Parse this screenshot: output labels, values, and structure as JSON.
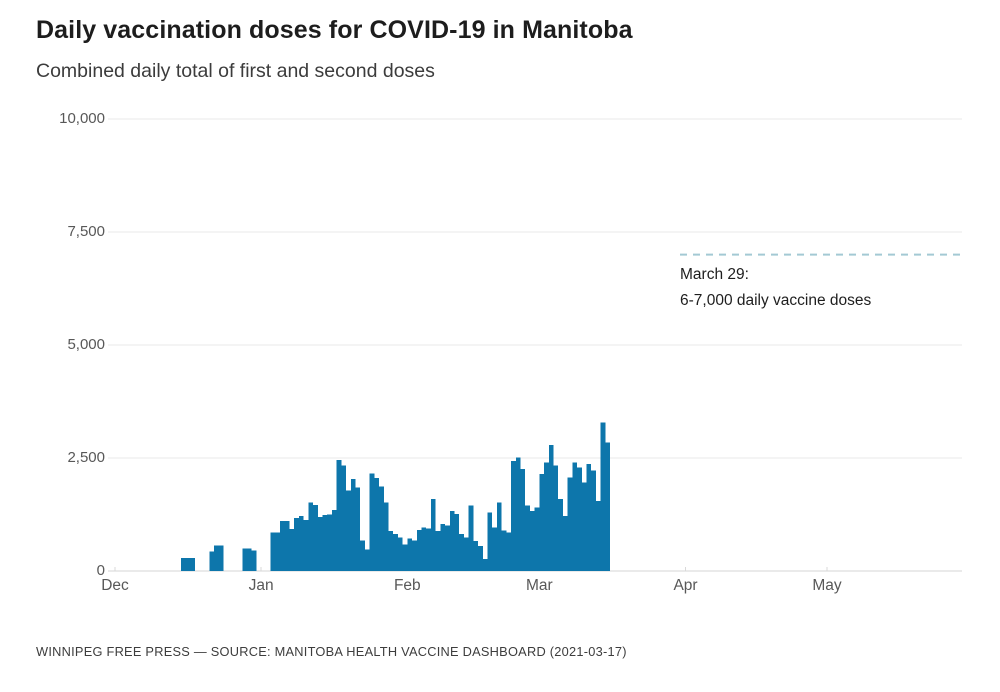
{
  "page": {
    "title": "Daily vaccination doses for COVID-19 in Manitoba",
    "subtitle": "Combined daily total of first and second doses",
    "footer": "WINNIPEG FREE PRESS — SOURCE: MANITOBA HEALTH VACCINE DASHBOARD (2021-03-17)"
  },
  "annotation": {
    "line1": "March 29:",
    "line2": "6-7,000 daily vaccine doses"
  },
  "colors": {
    "bar": "#0d76ab",
    "grid": "#e9e9e9",
    "axis": "#d4d4d4",
    "month_tick": "#d9d9d9",
    "dash_line": "#a3c9d4",
    "text_dark": "#1e1e1e",
    "tick_label": "#585858"
  },
  "chart_data": {
    "type": "bar",
    "title": "Daily vaccination doses for COVID-19 in Manitoba",
    "subtitle": "Combined daily total of first and second doses",
    "xlabel": "",
    "ylabel": "",
    "ylim": [
      0,
      10000
    ],
    "grid": true,
    "legend_position": "none",
    "yticks": [
      {
        "label": "0",
        "value": 0
      },
      {
        "label": "2,500",
        "value": 2500
      },
      {
        "label": "5,000",
        "value": 5000
      },
      {
        "label": "7,500",
        "value": 7500
      },
      {
        "label": "10,000",
        "value": 10000
      }
    ],
    "xticks": [
      {
        "label": "Dec",
        "month": "2020-12"
      },
      {
        "label": "Jan",
        "month": "2021-01"
      },
      {
        "label": "Feb",
        "month": "2021-02"
      },
      {
        "label": "Mar",
        "month": "2021-03"
      },
      {
        "label": "Apr",
        "month": "2021-04"
      },
      {
        "label": "May",
        "month": "2021-05"
      }
    ],
    "annotation_line": {
      "y": 7000,
      "label": [
        "March 29:",
        "6-7,000 daily vaccine doses"
      ]
    },
    "x": [
      "2020-12-15",
      "2020-12-16",
      "2020-12-17",
      "2020-12-18",
      "2020-12-19",
      "2020-12-20",
      "2020-12-21",
      "2020-12-22",
      "2020-12-23",
      "2020-12-24",
      "2020-12-25",
      "2020-12-26",
      "2020-12-27",
      "2020-12-28",
      "2020-12-29",
      "2020-12-30",
      "2020-12-31",
      "2021-01-01",
      "2021-01-02",
      "2021-01-03",
      "2021-01-04",
      "2021-01-05",
      "2021-01-06",
      "2021-01-07",
      "2021-01-08",
      "2021-01-09",
      "2021-01-10",
      "2021-01-11",
      "2021-01-12",
      "2021-01-13",
      "2021-01-14",
      "2021-01-15",
      "2021-01-16",
      "2021-01-17",
      "2021-01-18",
      "2021-01-19",
      "2021-01-20",
      "2021-01-21",
      "2021-01-22",
      "2021-01-23",
      "2021-01-24",
      "2021-01-25",
      "2021-01-26",
      "2021-01-27",
      "2021-01-28",
      "2021-01-29",
      "2021-01-30",
      "2021-01-31",
      "2021-02-01",
      "2021-02-02",
      "2021-02-03",
      "2021-02-04",
      "2021-02-05",
      "2021-02-06",
      "2021-02-07",
      "2021-02-08",
      "2021-02-09",
      "2021-02-10",
      "2021-02-11",
      "2021-02-12",
      "2021-02-13",
      "2021-02-14",
      "2021-02-15",
      "2021-02-16",
      "2021-02-17",
      "2021-02-18",
      "2021-02-19",
      "2021-02-20",
      "2021-02-21",
      "2021-02-22",
      "2021-02-23",
      "2021-02-24",
      "2021-02-25",
      "2021-02-26",
      "2021-02-27",
      "2021-02-28",
      "2021-03-01",
      "2021-03-02",
      "2021-03-03",
      "2021-03-04",
      "2021-03-05",
      "2021-03-06",
      "2021-03-07",
      "2021-03-08",
      "2021-03-09",
      "2021-03-10",
      "2021-03-11",
      "2021-03-12",
      "2021-03-13",
      "2021-03-14",
      "2021-03-15"
    ],
    "values": [
      290,
      290,
      290,
      0,
      0,
      0,
      430,
      560,
      560,
      0,
      0,
      0,
      0,
      500,
      500,
      450,
      0,
      0,
      0,
      850,
      850,
      1110,
      1110,
      930,
      1170,
      1220,
      1125,
      1520,
      1465,
      1200,
      1240,
      1250,
      1350,
      2460,
      2330,
      1780,
      2040,
      1850,
      670,
      480,
      2160,
      2060,
      1870,
      1520,
      890,
      820,
      740,
      590,
      720,
      670,
      910,
      960,
      940,
      1590,
      890,
      1040,
      1010,
      1330,
      1260,
      815,
      740,
      1445,
      665,
      555,
      260,
      1295,
      960,
      1515,
      900,
      850,
      2430,
      2515,
      2260,
      1445,
      1330,
      1400,
      2150,
      2405,
      2790,
      2330,
      1590,
      1220,
      2070,
      2405,
      2295,
      1960,
      2365,
      2220,
      1550,
      3290,
      2845
    ],
    "source": "WINNIPEG FREE PRESS — SOURCE: MANITOBA HEALTH VACCINE DASHBOARD (2021-03-17)"
  }
}
